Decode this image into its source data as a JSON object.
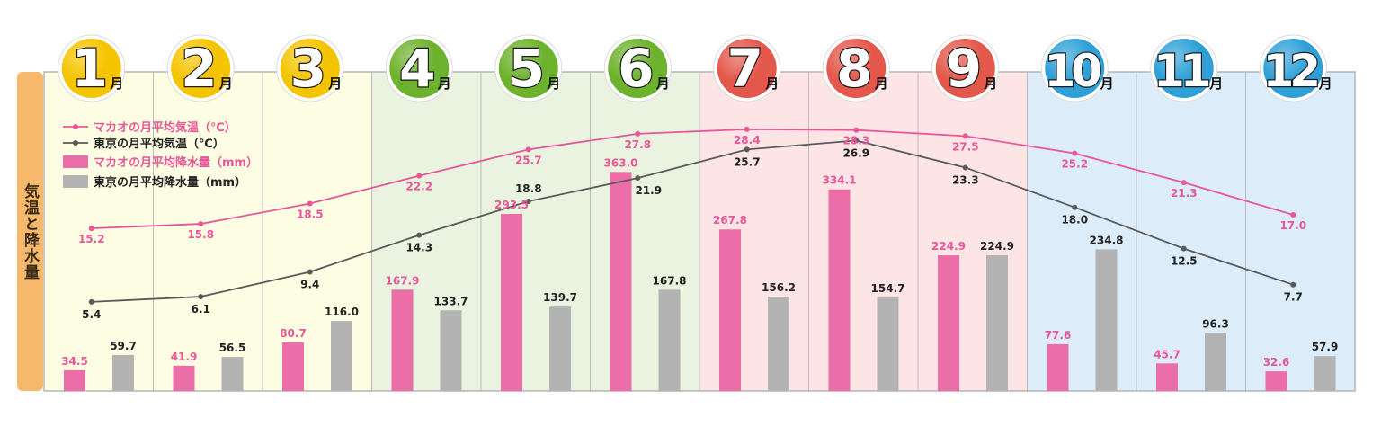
{
  "side_label": "気温と降水量",
  "legend": [
    {
      "label": "マカオの月平均気温（℃）",
      "kind": "line",
      "color": "#e8579a"
    },
    {
      "label": "東京の月平均気温（℃）",
      "kind": "line",
      "color": "#555555"
    },
    {
      "label": "マカオの月平均降水量（mm）",
      "kind": "bar",
      "color": "#eb6ea8"
    },
    {
      "label": "東京の月平均降水量（mm）",
      "kind": "bar",
      "color": "#b3b3b3"
    }
  ],
  "colors": {
    "macau": "#e8579a",
    "tokyo": "#5a5a5a",
    "macau_bar": "#eb6ea8",
    "tokyo_bar": "#b3b3b3",
    "winter_bg": "#fdfde3",
    "spring_bg": "#eaf3df",
    "summer_bg": "#fde4e5",
    "autumn_bg": "#dcecf8",
    "badge_yellow": "#f5c400",
    "badge_green": "#6db22c",
    "badge_red": "#e4584b",
    "badge_blue": "#2ea0d8",
    "side_tab": "#f6b86a"
  },
  "chart_data": {
    "type": "bar+line",
    "categories": [
      "1月",
      "2月",
      "3月",
      "4月",
      "5月",
      "6月",
      "7月",
      "8月",
      "9月",
      "10月",
      "11月",
      "12月"
    ],
    "month_numbers": [
      "1",
      "2",
      "3",
      "4",
      "5",
      "6",
      "7",
      "8",
      "9",
      "10",
      "11",
      "12"
    ],
    "month_suffix": "月",
    "badge_colors": [
      "yellow",
      "yellow",
      "yellow",
      "green",
      "green",
      "green",
      "red",
      "red",
      "red",
      "blue",
      "blue",
      "blue"
    ],
    "series": [
      {
        "name": "マカオの月平均気温（℃）",
        "kind": "line",
        "values": [
          15.2,
          15.8,
          18.5,
          22.2,
          25.7,
          27.8,
          28.4,
          28.3,
          27.5,
          25.2,
          21.3,
          17.0
        ],
        "labels": [
          "15.2",
          "15.8",
          "18.5",
          "22.2",
          "25.7",
          "27.8",
          "28.4",
          "28.3",
          "27.5",
          "25.2",
          "21.3",
          "17.0"
        ]
      },
      {
        "name": "東京の月平均気温（℃）",
        "kind": "line",
        "values": [
          5.4,
          6.1,
          9.4,
          14.3,
          18.8,
          21.9,
          25.7,
          26.9,
          23.3,
          18.0,
          12.5,
          7.7
        ],
        "labels": [
          "5.4",
          "6.1",
          "9.4",
          "14.3",
          "18.8",
          "21.9",
          "25.7",
          "26.9",
          "23.3",
          "18.0",
          "12.5",
          "7.7"
        ]
      },
      {
        "name": "マカオの月平均降水量（mm）",
        "kind": "bar",
        "values": [
          34.5,
          41.9,
          80.7,
          167.9,
          293.5,
          363.0,
          267.8,
          334.1,
          224.9,
          77.6,
          45.7,
          32.6
        ],
        "labels": [
          "34.5",
          "41.9",
          "80.7",
          "167.9",
          "293.5",
          "363.0",
          "267.8",
          "334.1",
          "224.9",
          "77.6",
          "45.7",
          "32.6"
        ]
      },
      {
        "name": "東京の月平均降水量（mm）",
        "kind": "bar",
        "values": [
          59.7,
          56.5,
          116.0,
          133.7,
          139.7,
          167.8,
          156.2,
          154.7,
          224.9,
          234.8,
          96.3,
          57.9
        ],
        "labels": [
          "59.7",
          "56.5",
          "116.0",
          "133.7",
          "139.7",
          "167.8",
          "156.2",
          "154.7",
          "224.9",
          "234.8",
          "96.3",
          "57.9"
        ]
      }
    ],
    "temperature_range": [
      0,
      30
    ],
    "precipitation_range": [
      0,
      365
    ],
    "grid": false,
    "legend_position": "top-left"
  }
}
